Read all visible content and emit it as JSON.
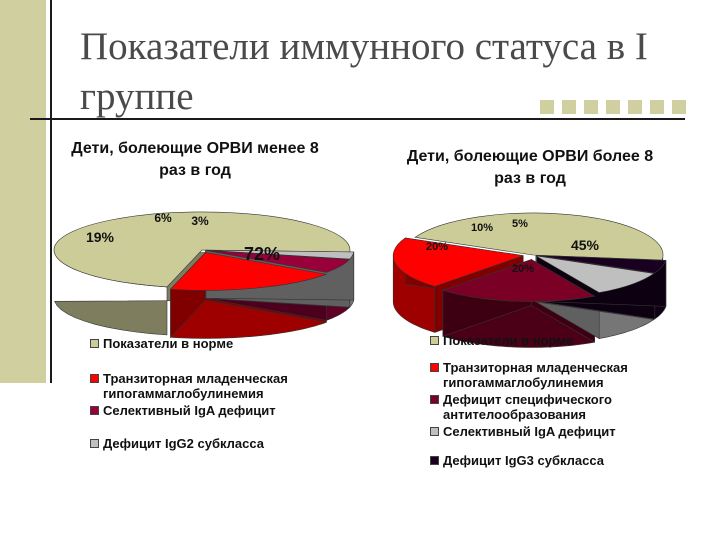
{
  "slide": {
    "title": "Показатели иммунного статуса в I группе"
  },
  "chart_data": [
    {
      "type": "pie",
      "title": "Дети, болеющие ОРВИ менее 8 раз в год",
      "labels": [
        "Показатели в норме",
        "Транзиторная младенческая гипогаммаглобулинемия",
        "Селективный IgA дефицит",
        "Дефицит IgG2 субкласса"
      ],
      "values": [
        72,
        19,
        6,
        3
      ],
      "data_labels": [
        "72%",
        "19%",
        "6%",
        "3%"
      ],
      "colors": [
        "#cccc99",
        "#ff0000",
        "#99003a",
        "#bfbfbf"
      ],
      "legend_position": "bottom"
    },
    {
      "type": "pie",
      "title": "Дети, болеющие ОРВИ более 8 раз в год",
      "labels": [
        "Показатели в норме",
        "Транзиторная младенческая гипогаммаглобулинемия",
        "Дефицит специфического антителообразования",
        "Селективный IgA дефицит",
        "Дефицит IgG3 субкласса"
      ],
      "values": [
        45,
        20,
        20,
        10,
        5
      ],
      "data_labels": [
        "45%",
        "20%",
        "20%",
        "10%",
        "5%"
      ],
      "colors": [
        "#cccc99",
        "#ff0000",
        "#7a0026",
        "#bfbfbf",
        "#1a0020"
      ],
      "legend_position": "bottom"
    }
  ]
}
